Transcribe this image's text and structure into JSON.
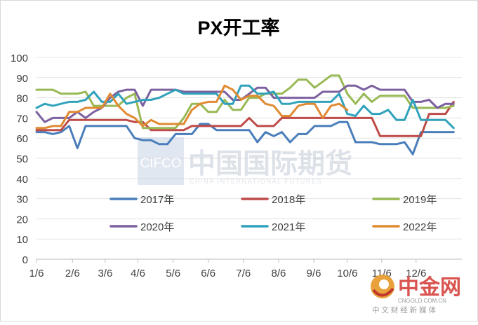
{
  "chart_data": {
    "type": "line",
    "title": "PX开工率",
    "xlabel": "",
    "ylabel": "",
    "ylim": [
      0,
      100
    ],
    "yticks": [
      0,
      10,
      20,
      30,
      40,
      50,
      60,
      70,
      80,
      90,
      100
    ],
    "x_range": [
      1,
      53
    ],
    "xticks": [
      {
        "label": "1/6",
        "x": 1
      },
      {
        "label": "2/6",
        "x": 5.4
      },
      {
        "label": "3/6",
        "x": 9.4
      },
      {
        "label": "4/6",
        "x": 13.4
      },
      {
        "label": "5/6",
        "x": 17.7
      },
      {
        "label": "6/6",
        "x": 22.0
      },
      {
        "label": "7/6",
        "x": 26.3
      },
      {
        "label": "8/6",
        "x": 30.6
      },
      {
        "label": "9/6",
        "x": 34.9
      },
      {
        "label": "10/6",
        "x": 39.0
      },
      {
        "label": "11/6",
        "x": 43.2
      },
      {
        "label": "12/6",
        "x": 47.4
      }
    ],
    "legend_position": "bottom-inside",
    "series": [
      {
        "name": "2017年",
        "color": "#4a7ebb",
        "values": [
          [
            1,
            63
          ],
          [
            2,
            63
          ],
          [
            3,
            62
          ],
          [
            4,
            63
          ],
          [
            5,
            66
          ],
          [
            6,
            55
          ],
          [
            7,
            66
          ],
          [
            8,
            66
          ],
          [
            9,
            66
          ],
          [
            10,
            66
          ],
          [
            11,
            66
          ],
          [
            12,
            66
          ],
          [
            13,
            60
          ],
          [
            14,
            59
          ],
          [
            15,
            59
          ],
          [
            16,
            57
          ],
          [
            17,
            57
          ],
          [
            18,
            62
          ],
          [
            19,
            62
          ],
          [
            20,
            62
          ],
          [
            21,
            67
          ],
          [
            22,
            67
          ],
          [
            23,
            64
          ],
          [
            24,
            64
          ],
          [
            25,
            64
          ],
          [
            26,
            64
          ],
          [
            27,
            64
          ],
          [
            28,
            58
          ],
          [
            29,
            63
          ],
          [
            30,
            61
          ],
          [
            31,
            63
          ],
          [
            32,
            58
          ],
          [
            33,
            62
          ],
          [
            34,
            62
          ],
          [
            35,
            66
          ],
          [
            36,
            66
          ],
          [
            37,
            66
          ],
          [
            38,
            68
          ],
          [
            39,
            68
          ],
          [
            40,
            58
          ],
          [
            41,
            58
          ],
          [
            42,
            58
          ],
          [
            43,
            57
          ],
          [
            44,
            57
          ],
          [
            45,
            57
          ],
          [
            46,
            58
          ],
          [
            47,
            52
          ],
          [
            48,
            63
          ],
          [
            49,
            63
          ],
          [
            50,
            63
          ],
          [
            51,
            63
          ],
          [
            52,
            63
          ]
        ]
      },
      {
        "name": "2018年",
        "color": "#be4b48",
        "values": [
          [
            1,
            64
          ],
          [
            2,
            64
          ],
          [
            3,
            64
          ],
          [
            4,
            64
          ],
          [
            5,
            69
          ],
          [
            6,
            69
          ],
          [
            7,
            69
          ],
          [
            8,
            69
          ],
          [
            9,
            69
          ],
          [
            10,
            69
          ],
          [
            11,
            69
          ],
          [
            12,
            69
          ],
          [
            13,
            68
          ],
          [
            14,
            68
          ],
          [
            15,
            64
          ],
          [
            16,
            64
          ],
          [
            17,
            64
          ],
          [
            18,
            64
          ],
          [
            19,
            64
          ],
          [
            20,
            66
          ],
          [
            21,
            66
          ],
          [
            22,
            66
          ],
          [
            23,
            66
          ],
          [
            24,
            66
          ],
          [
            25,
            66
          ],
          [
            26,
            66
          ],
          [
            27,
            70
          ],
          [
            28,
            66
          ],
          [
            29,
            66
          ],
          [
            30,
            66
          ],
          [
            31,
            70
          ],
          [
            32,
            70
          ],
          [
            33,
            70
          ],
          [
            34,
            70
          ],
          [
            35,
            70
          ],
          [
            36,
            70
          ],
          [
            37,
            70
          ],
          [
            38,
            70
          ],
          [
            39,
            70
          ],
          [
            40,
            70
          ],
          [
            41,
            70
          ],
          [
            42,
            70
          ],
          [
            43,
            61
          ],
          [
            44,
            61
          ],
          [
            45,
            61
          ],
          [
            46,
            61
          ],
          [
            47,
            61
          ],
          [
            48,
            61
          ],
          [
            49,
            72
          ],
          [
            50,
            72
          ],
          [
            51,
            72
          ],
          [
            52,
            78
          ]
        ]
      },
      {
        "name": "2019年",
        "color": "#98b954",
        "values": [
          [
            1,
            84
          ],
          [
            2,
            84
          ],
          [
            3,
            84
          ],
          [
            4,
            82
          ],
          [
            5,
            82
          ],
          [
            6,
            82
          ],
          [
            7,
            83
          ],
          [
            8,
            76
          ],
          [
            9,
            76
          ],
          [
            10,
            76
          ],
          [
            11,
            76
          ],
          [
            12,
            80
          ],
          [
            13,
            82
          ],
          [
            14,
            65
          ],
          [
            15,
            65
          ],
          [
            16,
            65
          ],
          [
            17,
            65
          ],
          [
            18,
            65
          ],
          [
            19,
            70
          ],
          [
            20,
            77
          ],
          [
            21,
            77
          ],
          [
            22,
            73
          ],
          [
            23,
            73
          ],
          [
            24,
            79
          ],
          [
            25,
            74
          ],
          [
            26,
            74
          ],
          [
            27,
            80
          ],
          [
            28,
            80
          ],
          [
            29,
            82
          ],
          [
            30,
            82
          ],
          [
            31,
            82
          ],
          [
            32,
            85
          ],
          [
            33,
            89
          ],
          [
            34,
            89
          ],
          [
            35,
            85
          ],
          [
            36,
            88
          ],
          [
            37,
            91
          ],
          [
            38,
            91
          ],
          [
            39,
            82
          ],
          [
            40,
            77
          ],
          [
            41,
            82
          ],
          [
            42,
            78
          ],
          [
            43,
            81
          ],
          [
            44,
            81
          ],
          [
            45,
            81
          ],
          [
            46,
            81
          ],
          [
            47,
            75
          ],
          [
            48,
            75
          ],
          [
            49,
            75
          ],
          [
            50,
            75
          ],
          [
            51,
            75
          ],
          [
            52,
            76
          ]
        ]
      },
      {
        "name": "2020年",
        "color": "#7d60a0",
        "values": [
          [
            1,
            73
          ],
          [
            2,
            68
          ],
          [
            3,
            70
          ],
          [
            4,
            70
          ],
          [
            5,
            70
          ],
          [
            6,
            73
          ],
          [
            7,
            70
          ],
          [
            8,
            73
          ],
          [
            9,
            75
          ],
          [
            10,
            80
          ],
          [
            11,
            83
          ],
          [
            12,
            84
          ],
          [
            13,
            84
          ],
          [
            14,
            76
          ],
          [
            15,
            84
          ],
          [
            16,
            84
          ],
          [
            17,
            84
          ],
          [
            18,
            84
          ],
          [
            19,
            83
          ],
          [
            20,
            83
          ],
          [
            21,
            83
          ],
          [
            22,
            83
          ],
          [
            23,
            83
          ],
          [
            24,
            83
          ],
          [
            25,
            79
          ],
          [
            26,
            79
          ],
          [
            27,
            82
          ],
          [
            28,
            85
          ],
          [
            29,
            85
          ],
          [
            30,
            80
          ],
          [
            31,
            80
          ],
          [
            32,
            80
          ],
          [
            33,
            80
          ],
          [
            34,
            80
          ],
          [
            35,
            80
          ],
          [
            36,
            83
          ],
          [
            37,
            83
          ],
          [
            38,
            83
          ],
          [
            39,
            86
          ],
          [
            40,
            86
          ],
          [
            41,
            84
          ],
          [
            42,
            86
          ],
          [
            43,
            84
          ],
          [
            44,
            84
          ],
          [
            45,
            84
          ],
          [
            46,
            84
          ],
          [
            47,
            78
          ],
          [
            48,
            78
          ],
          [
            49,
            79
          ],
          [
            50,
            75
          ],
          [
            51,
            77
          ],
          [
            52,
            77
          ]
        ]
      },
      {
        "name": "2021年",
        "color": "#31a2bc",
        "values": [
          [
            1,
            75
          ],
          [
            2,
            77
          ],
          [
            3,
            76
          ],
          [
            4,
            77
          ],
          [
            5,
            78
          ],
          [
            6,
            78
          ],
          [
            7,
            79
          ],
          [
            8,
            83
          ],
          [
            9,
            78
          ],
          [
            10,
            78
          ],
          [
            11,
            82
          ],
          [
            12,
            77
          ],
          [
            13,
            78
          ],
          [
            14,
            79
          ],
          [
            15,
            79
          ],
          [
            16,
            80
          ],
          [
            17,
            82
          ],
          [
            18,
            84
          ],
          [
            19,
            82
          ],
          [
            20,
            82
          ],
          [
            21,
            82
          ],
          [
            22,
            82
          ],
          [
            23,
            82
          ],
          [
            24,
            77
          ],
          [
            25,
            77
          ],
          [
            26,
            86
          ],
          [
            27,
            86
          ],
          [
            28,
            82
          ],
          [
            29,
            82
          ],
          [
            30,
            83
          ],
          [
            31,
            77
          ],
          [
            32,
            77
          ],
          [
            33,
            78
          ],
          [
            34,
            78
          ],
          [
            35,
            78
          ],
          [
            36,
            78
          ],
          [
            37,
            78
          ],
          [
            38,
            82
          ],
          [
            39,
            72
          ],
          [
            40,
            71
          ],
          [
            41,
            76
          ],
          [
            42,
            72
          ],
          [
            43,
            72
          ],
          [
            44,
            74
          ],
          [
            45,
            69
          ],
          [
            46,
            69
          ],
          [
            47,
            79
          ],
          [
            48,
            69
          ],
          [
            49,
            69
          ],
          [
            50,
            69
          ],
          [
            51,
            69
          ],
          [
            52,
            65
          ]
        ]
      },
      {
        "name": "2022年",
        "color": "#e08a31",
        "values": [
          [
            1,
            65
          ],
          [
            2,
            65
          ],
          [
            3,
            66
          ],
          [
            4,
            66
          ],
          [
            5,
            73
          ],
          [
            6,
            73
          ],
          [
            7,
            75
          ],
          [
            8,
            75
          ],
          [
            9,
            75
          ],
          [
            10,
            82
          ],
          [
            11,
            76
          ],
          [
            12,
            72
          ],
          [
            13,
            70
          ],
          [
            14,
            66
          ],
          [
            15,
            69
          ],
          [
            16,
            67
          ],
          [
            17,
            67
          ],
          [
            18,
            67
          ],
          [
            19,
            67
          ],
          [
            20,
            74
          ],
          [
            21,
            77
          ],
          [
            22,
            78
          ],
          [
            23,
            78
          ],
          [
            24,
            86
          ],
          [
            25,
            84
          ],
          [
            26,
            79
          ],
          [
            27,
            81
          ],
          [
            28,
            81
          ],
          [
            29,
            77
          ],
          [
            30,
            76
          ],
          [
            31,
            71
          ],
          [
            32,
            71
          ],
          [
            33,
            76
          ],
          [
            34,
            77
          ],
          [
            35,
            77
          ],
          [
            36,
            70
          ],
          [
            37,
            76
          ],
          [
            38,
            77
          ],
          [
            39,
            74
          ]
        ]
      }
    ]
  },
  "watermark": {
    "cifco_latin": "CIFCO",
    "cifco_cn": "中国国际期货",
    "cifco_en": "CHINA INTERNATIONAL FUTURES",
    "cngold_cn": "中金网",
    "cngold_url": "CNGOLD.COM.CN",
    "cngold_tagline": "中 文 财 经 新 媒 体"
  }
}
